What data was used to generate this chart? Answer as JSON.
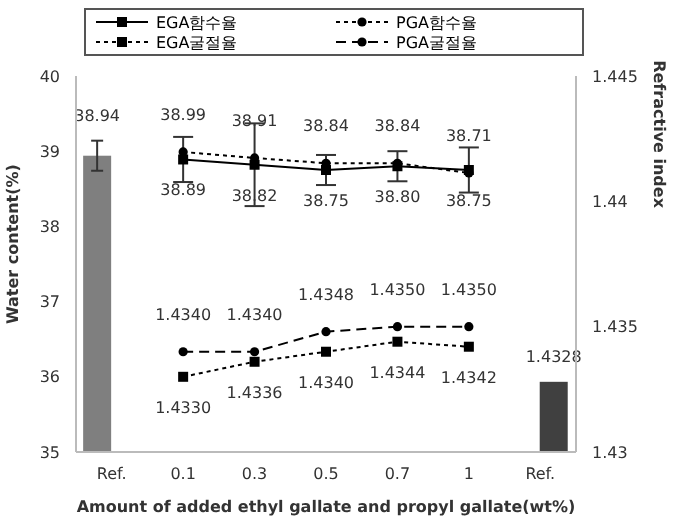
{
  "chart_data": {
    "type": "line",
    "xlabel": "Amount of added ethyl gallate and propyl gallate(wt%)",
    "ylabel": "Water content(%)",
    "y2label": "Refractive index",
    "categories": [
      "Ref.",
      "0.1",
      "0.3",
      "0.5",
      "0.7",
      "1",
      "Ref."
    ],
    "ylim": [
      35,
      40
    ],
    "yticks": [
      35,
      36,
      37,
      38,
      39,
      40
    ],
    "y2lim": [
      1.43,
      1.445
    ],
    "y2ticks": [
      1.43,
      1.435,
      1.44,
      1.445
    ],
    "legend": "top",
    "grid": false,
    "series": [
      {
        "type": "bar",
        "axis": "y",
        "color": "#7f7f7f",
        "values": [
          38.94,
          null,
          null,
          null,
          null,
          null,
          null
        ],
        "errors": [
          0.2,
          null,
          null,
          null,
          null,
          null,
          null
        ],
        "value_labels": [
          "38.94",
          null,
          null,
          null,
          null,
          null,
          null
        ]
      },
      {
        "name": "EGA함수율",
        "axis": "y",
        "color": "#000000",
        "marker": "square",
        "line_style": "solid",
        "values": [
          null,
          38.89,
          38.82,
          38.75,
          38.8,
          38.75,
          null
        ],
        "errors": [
          null,
          0.3,
          0.55,
          0.2,
          0.2,
          0.3,
          null
        ],
        "value_labels": [
          null,
          "38.89",
          "38.82",
          "38.75",
          "38.80",
          "38.75",
          null
        ]
      },
      {
        "name": "PGA함수율",
        "axis": "y",
        "color": "#000000",
        "marker": "circle",
        "line_style": "dotted",
        "values": [
          null,
          38.99,
          38.91,
          38.84,
          38.84,
          38.71,
          null
        ],
        "value_labels": [
          null,
          "38.99",
          "38.91",
          "38.84",
          "38.84",
          "38.71",
          null
        ]
      },
      {
        "name": "EGA굴절율",
        "axis": "y2",
        "color": "#000000",
        "marker": "square",
        "line_style": "dotted",
        "values": [
          null,
          1.433,
          1.4336,
          1.434,
          1.4344,
          1.4342,
          null
        ],
        "value_labels": [
          null,
          "1.4330",
          "1.4336",
          "1.4340",
          "1.4344",
          "1.4342",
          null
        ]
      },
      {
        "name": "PGA굴절율",
        "axis": "y2",
        "color": "#000000",
        "marker": "circle",
        "line_style": "dashed",
        "values": [
          null,
          1.434,
          1.434,
          1.4348,
          1.435,
          1.435,
          null
        ],
        "value_labels": [
          null,
          "1.4340",
          "1.4340",
          "1.4348",
          "1.4350",
          "1.4350",
          null
        ]
      },
      {
        "type": "bar",
        "axis": "y2",
        "color": "#404040",
        "values": [
          null,
          null,
          null,
          null,
          null,
          null,
          1.4328
        ],
        "value_labels": [
          null,
          null,
          null,
          null,
          null,
          null,
          "1.4328"
        ]
      }
    ]
  }
}
